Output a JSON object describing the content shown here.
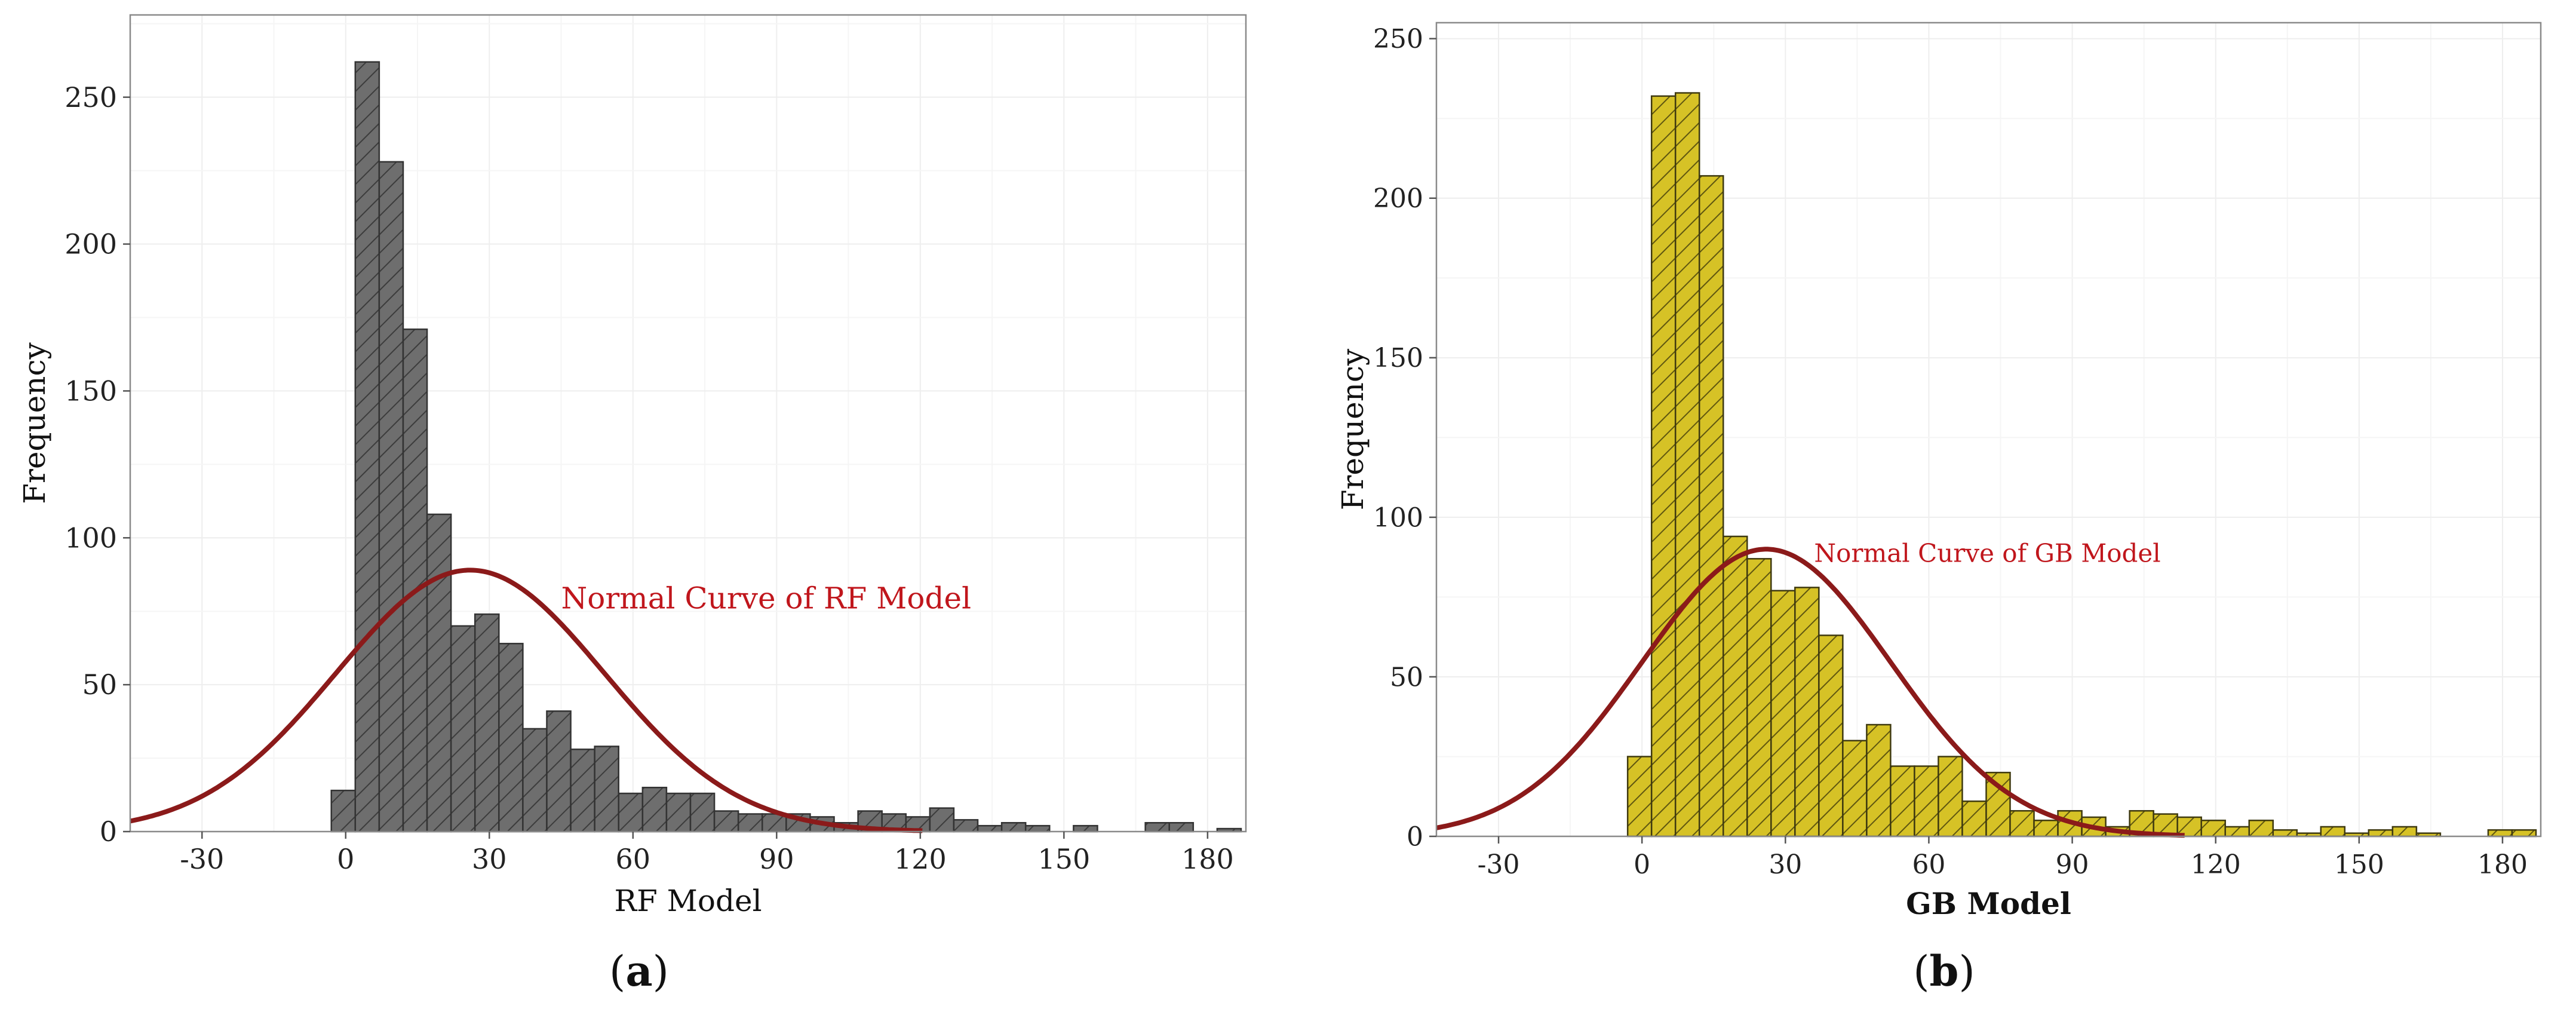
{
  "chart_data": [
    {
      "panel": "a",
      "type": "bar",
      "caption_letter": "a",
      "xlabel": "RF Model",
      "ylabel": "Frequency",
      "xlim": [
        -45,
        188
      ],
      "ylim": [
        0,
        278
      ],
      "xticks": [
        -30,
        0,
        30,
        60,
        90,
        120,
        150,
        180
      ],
      "yticks": [
        0,
        50,
        100,
        150,
        200,
        250
      ],
      "grid": true,
      "bin_width": 5,
      "bar_color": "#6e6e6e",
      "hatch_color": "#3c3c3c",
      "edge_color": "#333333",
      "bins_start": [
        -3,
        2,
        7,
        12,
        17,
        22,
        27,
        32,
        37,
        42,
        47,
        52,
        57,
        62,
        67,
        72,
        77,
        82,
        87,
        92,
        97,
        102,
        107,
        112,
        117,
        122,
        127,
        132,
        137,
        142,
        147,
        152,
        157,
        162,
        167,
        172,
        177,
        182
      ],
      "values": [
        14,
        262,
        228,
        171,
        108,
        70,
        74,
        64,
        35,
        41,
        28,
        29,
        13,
        15,
        13,
        13,
        7,
        6,
        6,
        6,
        5,
        3,
        7,
        6,
        5,
        8,
        4,
        2,
        3,
        2,
        0,
        2,
        0,
        0,
        3,
        3,
        0,
        1
      ],
      "curve": {
        "label": "Normal Curve of RF Model",
        "mean": 26,
        "sd": 28,
        "peak": 89,
        "color": "#8b1a1a",
        "label_color": "#c0161c",
        "label_x": 45,
        "label_y": 76
      }
    },
    {
      "panel": "b",
      "type": "bar",
      "caption_letter": "b",
      "xlabel": "GB Model",
      "ylabel": "Frequency",
      "xlim": [
        -43,
        188
      ],
      "ylim": [
        0,
        255
      ],
      "xticks": [
        -30,
        0,
        30,
        60,
        90,
        120,
        150,
        180
      ],
      "yticks": [
        0,
        50,
        100,
        150,
        200,
        250
      ],
      "grid": true,
      "bin_width": 5,
      "bar_color": "#d6c226",
      "hatch_color": "#5f5610",
      "edge_color": "#3f3a10",
      "bins_start": [
        -3,
        2,
        7,
        12,
        17,
        22,
        27,
        32,
        37,
        42,
        47,
        52,
        57,
        62,
        67,
        72,
        77,
        82,
        87,
        92,
        97,
        102,
        107,
        112,
        117,
        122,
        127,
        132,
        137,
        142,
        147,
        152,
        157,
        162,
        167,
        172,
        177,
        182
      ],
      "values": [
        25,
        232,
        233,
        207,
        94,
        87,
        77,
        78,
        63,
        30,
        35,
        22,
        22,
        25,
        11,
        20,
        8,
        5,
        8,
        6,
        3,
        8,
        7,
        6,
        5,
        3,
        5,
        2,
        1,
        3,
        1,
        2,
        3,
        1,
        0,
        0,
        2,
        2
      ],
      "curve": {
        "label": "Normal Curve of GB Model",
        "mean": 26,
        "sd": 26,
        "peak": 90,
        "color": "#8b1a1a",
        "label_color": "#c0161c",
        "label_x": 36,
        "label_y": 86
      }
    }
  ]
}
